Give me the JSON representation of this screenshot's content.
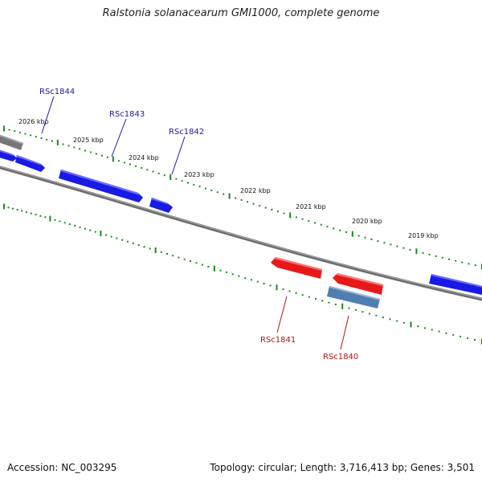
{
  "title": "Ralstonia solanacearum GMI1000, complete genome",
  "footer": {
    "accession_text": "Accession: NC_003295",
    "stats_text": "Topology: circular; Length: 3,716,413 bp; Genes: 3,501"
  },
  "colors": {
    "backbone": "#6e6e6e",
    "forward_gene": "#1a1ae6",
    "reverse_gene": "#e61919",
    "rna_gene": "#4f7fb0",
    "other_feature": "#777777",
    "tick": "#1a8a1a",
    "forward_label": "#1a1aa6",
    "reverse_label": "#b01515"
  },
  "scale_labels": [
    "2026 kbp",
    "2025 kbp",
    "2024 kbp",
    "2023 kbp",
    "2022 kbp",
    "2021 kbp",
    "2020 kbp",
    "2019 kbp"
  ],
  "genes": [
    {
      "label": "RSc1844",
      "strand": "forward"
    },
    {
      "label": "RSc1843",
      "strand": "forward"
    },
    {
      "label": "RSc1842",
      "strand": "forward"
    },
    {
      "label": "RSc1841",
      "strand": "reverse"
    },
    {
      "label": "RSc1840",
      "strand": "reverse"
    }
  ]
}
